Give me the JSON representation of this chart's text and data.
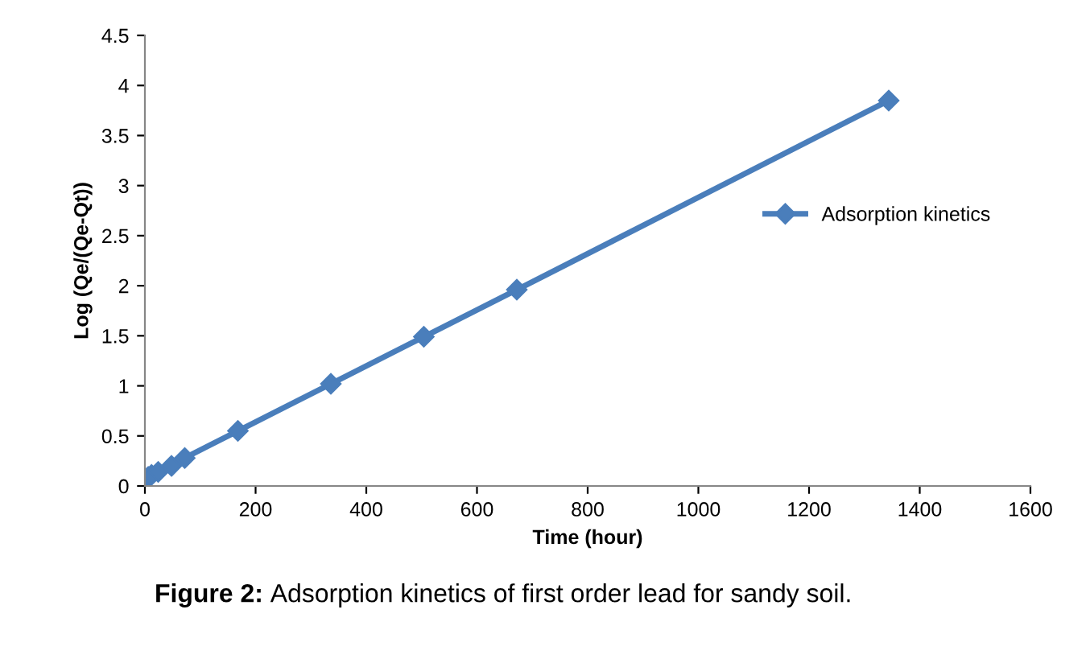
{
  "chart_data": {
    "type": "line",
    "xlabel": "Time (hour)",
    "ylabel": "Log (Qe/(Qe-Qt))",
    "x": [
      2,
      6,
      12,
      24,
      48,
      72,
      168,
      336,
      504,
      672,
      1344
    ],
    "series": [
      {
        "name": "Adsorption kinetics",
        "color": "#4a7ebb",
        "values": [
          0.07,
          0.09,
          0.11,
          0.14,
          0.2,
          0.28,
          0.55,
          1.02,
          1.49,
          1.96,
          3.85
        ]
      }
    ],
    "xlim": [
      0,
      1600
    ],
    "xticks": [
      0,
      200,
      400,
      600,
      800,
      1000,
      1200,
      1400,
      1600
    ],
    "ylim": [
      0,
      4.5
    ],
    "yticks": [
      0,
      0.5,
      1,
      1.5,
      2,
      2.5,
      3,
      3.5,
      4,
      4.5
    ],
    "grid": false,
    "legend": "right",
    "marker": "diamond",
    "line_style": "solid",
    "annotations": [
      "Figure 2: Adsorption kinetics of first order lead for sandy soil."
    ]
  }
}
